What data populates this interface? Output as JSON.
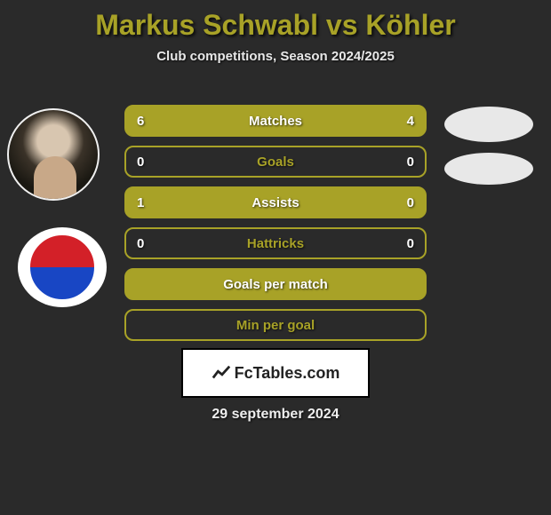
{
  "title": {
    "text": "Markus Schwabl vs Köhler",
    "color": "#a8a227"
  },
  "subtitle": "Club competitions, Season 2024/2025",
  "background_color": "#2a2a2a",
  "row_style": {
    "filled_color": "#a8a227",
    "outline_color": "#a8a227",
    "border_radius": 10,
    "height": 36,
    "font_size": 15,
    "label_color": "#ffffff"
  },
  "rows": [
    {
      "label": "Matches",
      "left": "6",
      "right": "4",
      "filled": true
    },
    {
      "label": "Goals",
      "left": "0",
      "right": "0",
      "filled": false
    },
    {
      "label": "Assists",
      "left": "1",
      "right": "0",
      "filled": true
    },
    {
      "label": "Hattricks",
      "left": "0",
      "right": "0",
      "filled": false
    },
    {
      "label": "Goals per match",
      "left": "",
      "right": "",
      "filled": true
    },
    {
      "label": "Min per goal",
      "left": "",
      "right": "",
      "filled": false
    }
  ],
  "footer_brand": "FcTables.com",
  "date": "29 september 2024"
}
